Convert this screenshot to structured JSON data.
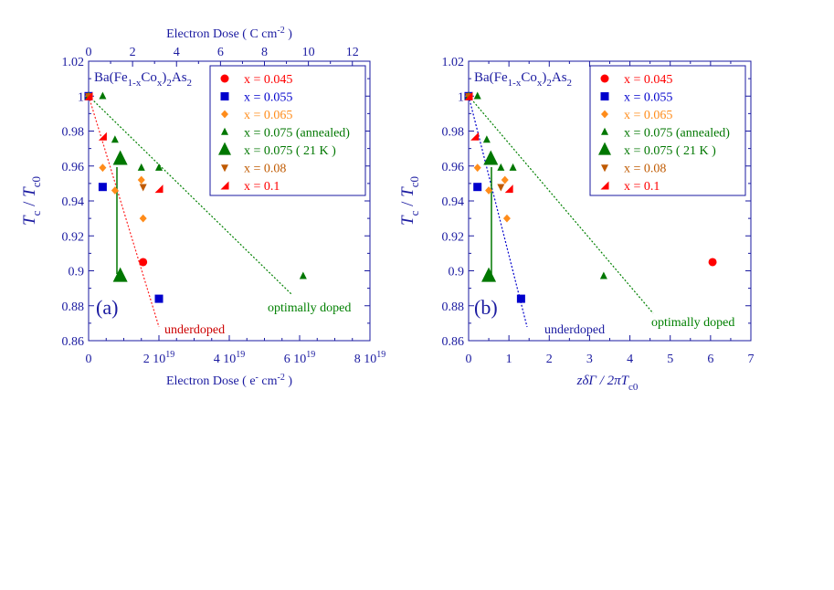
{
  "chart_data": [
    {
      "type": "scatter",
      "panel_label": "(a)",
      "compound": {
        "pre": "Ba(Fe",
        "s1": "1-x",
        "mid": "Co",
        "s2": "x",
        "mid2": ")",
        "s3": "2",
        "end": "As",
        "s4": "2"
      },
      "xlabel": "Electron Dose ( e",
      "xlabel_sup": "-",
      "xlabel_end": " cm",
      "xlabel_sup2": "-2",
      "xlabel_close": " )",
      "top_xlabel": "Electron Dose ( C cm",
      "top_xlabel_sup": "-2",
      "top_xlabel_close": " )",
      "ylabel": {
        "t": "T",
        "c": "c",
        "slash": " / ",
        "t2": "T",
        "c0": "c0"
      },
      "xlim": [
        0,
        8
      ],
      "ylim": [
        0.86,
        1.02
      ],
      "xticks": [
        {
          "v": 0,
          "label": "0",
          "exp": ""
        },
        {
          "v": 2,
          "label": "2 10",
          "exp": "19"
        },
        {
          "v": 4,
          "label": "4 10",
          "exp": "19"
        },
        {
          "v": 6,
          "label": "6 10",
          "exp": "19"
        },
        {
          "v": 8,
          "label": "8 10",
          "exp": "19"
        }
      ],
      "top_xlim": [
        0,
        12.8
      ],
      "top_xticks": [
        "0",
        "2",
        "4",
        "6",
        "8",
        "10",
        "12"
      ],
      "yticks": [
        "0.86",
        "0.88",
        "0.9",
        "0.92",
        "0.94",
        "0.96",
        "0.98",
        "1",
        "1.02"
      ],
      "series": [
        {
          "name": "x = 0.045",
          "marker": "circle",
          "color": "#ff0000",
          "size": 4.5,
          "points": [
            [
              0,
              1.0
            ],
            [
              1.55,
              0.905
            ]
          ]
        },
        {
          "name": "x = 0.055",
          "marker": "square",
          "color": "#0000cc",
          "size": 4.5,
          "points": [
            [
              0,
              1.0
            ],
            [
              0.4,
              0.948
            ],
            [
              2.0,
              0.884
            ]
          ]
        },
        {
          "name": "x = 0.065",
          "marker": "diamond",
          "color": "#ff8c1a",
          "size": 4,
          "points": [
            [
              0,
              1.0
            ],
            [
              0.4,
              0.959
            ],
            [
              0.75,
              0.946
            ],
            [
              1.5,
              0.952
            ],
            [
              1.55,
              0.93
            ]
          ]
        },
        {
          "name": "x = 0.075 (annealed)",
          "marker": "triangle",
          "color": "#007700",
          "size": 4,
          "points": [
            [
              0,
              1.0
            ],
            [
              0.4,
              1.0
            ],
            [
              0.75,
              0.975
            ],
            [
              1.5,
              0.959
            ],
            [
              2.0,
              0.959
            ],
            [
              6.1,
              0.897
            ]
          ]
        },
        {
          "name": "x = 0.075 ( 21 K )",
          "marker": "triangle",
          "color": "#007700",
          "size": 8,
          "points": [
            [
              0.9,
              0.897
            ],
            [
              0.9,
              0.964
            ]
          ]
        },
        {
          "name": "x = 0.08",
          "marker": "triangle-down",
          "color": "#c05a00",
          "size": 4,
          "points": [
            [
              0,
              1.0
            ],
            [
              1.55,
              0.948
            ]
          ]
        },
        {
          "name": "x = 0.1",
          "marker": "half-triangle",
          "color": "#ff0000",
          "size": 4.5,
          "points": [
            [
              0,
              1.0
            ],
            [
              0.4,
              0.977
            ],
            [
              2.0,
              0.947
            ]
          ]
        }
      ],
      "annotations": {
        "underdoped": "underdoped",
        "optimally": "optimally doped"
      }
    },
    {
      "type": "scatter",
      "panel_label": "(b)",
      "compound": {
        "pre": "Ba(Fe",
        "s1": "1-x",
        "mid": "Co",
        "s2": "x",
        "mid2": ")",
        "s3": "2",
        "end": "As",
        "s4": "2"
      },
      "xlabel": "zδΓ / 2πT",
      "xlabel_sub": "c0",
      "ylabel": {
        "t": "T",
        "c": "c",
        "slash": " / ",
        "t2": "T",
        "c0": "c0"
      },
      "xlim": [
        0,
        7
      ],
      "ylim": [
        0.86,
        1.02
      ],
      "xticks": [
        {
          "v": 0,
          "label": "0",
          "exp": ""
        },
        {
          "v": 1,
          "label": "1",
          "exp": ""
        },
        {
          "v": 2,
          "label": "2",
          "exp": ""
        },
        {
          "v": 3,
          "label": "3",
          "exp": ""
        },
        {
          "v": 4,
          "label": "4",
          "exp": ""
        },
        {
          "v": 5,
          "label": "5",
          "exp": ""
        },
        {
          "v": 6,
          "label": "6",
          "exp": ""
        },
        {
          "v": 7,
          "label": "7",
          "exp": ""
        }
      ],
      "yticks": [
        "0.86",
        "0.88",
        "0.9",
        "0.92",
        "0.94",
        "0.96",
        "0.98",
        "1",
        "1.02"
      ],
      "series": [
        {
          "name": "x = 0.045",
          "marker": "circle",
          "color": "#ff0000",
          "size": 4.5,
          "points": [
            [
              0,
              1.0
            ],
            [
              6.05,
              0.905
            ]
          ]
        },
        {
          "name": "x = 0.055",
          "marker": "square",
          "color": "#0000cc",
          "size": 4.5,
          "points": [
            [
              0,
              1.0
            ],
            [
              0.22,
              0.948
            ],
            [
              1.3,
              0.884
            ]
          ]
        },
        {
          "name": "x = 0.065",
          "marker": "diamond",
          "color": "#ff8c1a",
          "size": 4,
          "points": [
            [
              0,
              1.0
            ],
            [
              0.22,
              0.959
            ],
            [
              0.5,
              0.946
            ],
            [
              0.9,
              0.952
            ],
            [
              0.95,
              0.93
            ]
          ]
        },
        {
          "name": "x = 0.075 (annealed)",
          "marker": "triangle",
          "color": "#007700",
          "size": 4,
          "points": [
            [
              0,
              1.0
            ],
            [
              0.22,
              1.0
            ],
            [
              0.45,
              0.975
            ],
            [
              0.8,
              0.959
            ],
            [
              1.1,
              0.959
            ],
            [
              3.35,
              0.897
            ]
          ]
        },
        {
          "name": "x = 0.075 ( 21 K )",
          "marker": "triangle",
          "color": "#007700",
          "size": 8,
          "points": [
            [
              0.5,
              0.897
            ],
            [
              0.55,
              0.964
            ]
          ]
        },
        {
          "name": "x = 0.08",
          "marker": "triangle-down",
          "color": "#c05a00",
          "size": 4,
          "points": [
            [
              0,
              1.0
            ],
            [
              0.8,
              0.948
            ]
          ]
        },
        {
          "name": "x = 0.1",
          "marker": "half-triangle",
          "color": "#ff0000",
          "size": 4.5,
          "points": [
            [
              0,
              1.0
            ],
            [
              0.15,
              0.977
            ],
            [
              1.0,
              0.947
            ]
          ]
        }
      ],
      "annotations": {
        "underdoped": "underdoped",
        "optimally": "optimally doped"
      }
    }
  ]
}
